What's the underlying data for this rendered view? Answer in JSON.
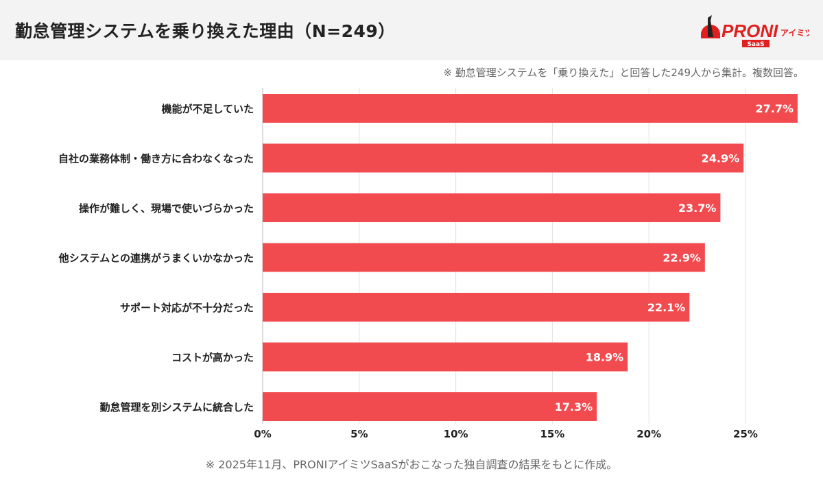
{
  "header": {
    "title": "勤怠管理システムを乗り換えた理由（N=249）",
    "logo_text": "PRONI",
    "logo_kana": "アイミツ",
    "logo_sub": "SaaS"
  },
  "note": "※ 勤怠管理システムを「乗り換えた」と回答した249人から集計。複数回答。",
  "footer": "※ 2025年11月、PRONIアイミツSaaSがおこなった独自調査の結果をもとに作成。",
  "chart_data": {
    "type": "bar",
    "orientation": "horizontal",
    "categories": [
      "機能が不足していた",
      "自社の業務体制・働き方に合わなくなった",
      "操作が難しく、現場で使いづらかった",
      "他システムとの連携がうまくいかなかった",
      "サポート対応が不十分だった",
      "コストが高かった",
      "勤怠管理を別システムに統合した"
    ],
    "values": [
      27.7,
      24.9,
      23.7,
      22.9,
      22.1,
      18.9,
      17.3
    ],
    "data_labels": [
      "27.7%",
      "24.9%",
      "23.7%",
      "22.9%",
      "22.1%",
      "18.9%",
      "17.3%"
    ],
    "xlim": [
      0,
      28
    ],
    "xticks": [
      0,
      5,
      10,
      15,
      20,
      25
    ],
    "xtick_labels": [
      "0%",
      "5%",
      "10%",
      "15%",
      "20%",
      "25%"
    ],
    "grid": true,
    "bar_color": "#f24b4f"
  }
}
